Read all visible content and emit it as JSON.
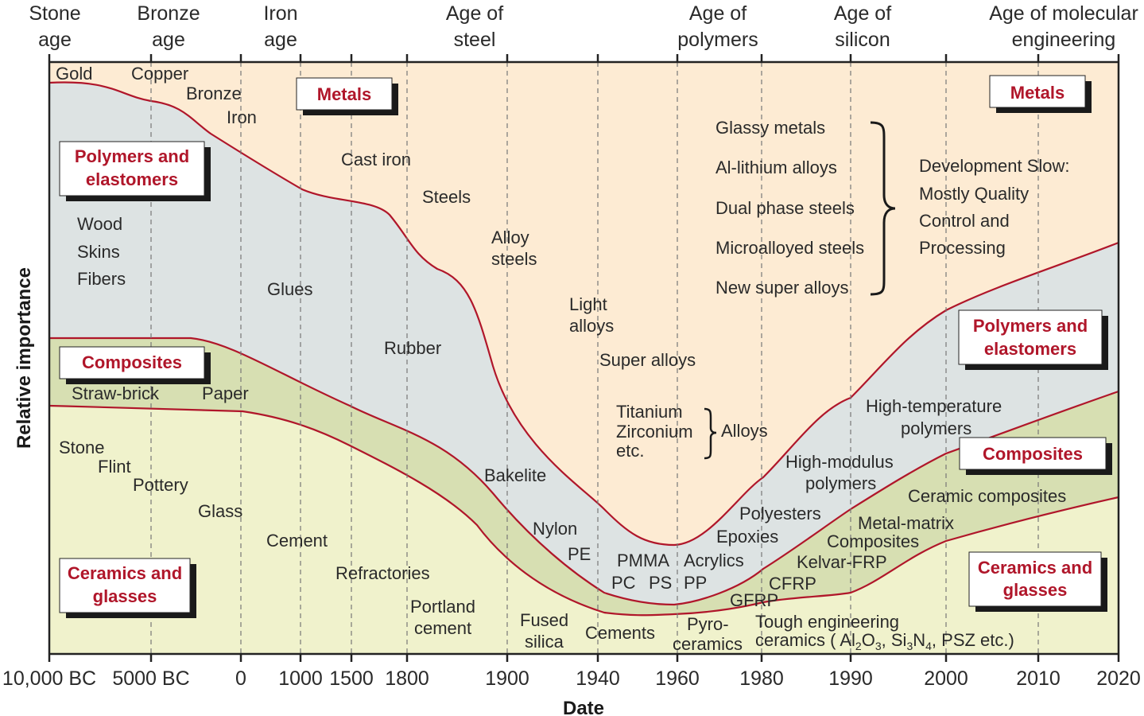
{
  "colors": {
    "metals": "#fdebd3",
    "polymers": "#dde3e3",
    "composites": "#d7dfb2",
    "ceramics": "#f0f2cc",
    "boundary": "#b0162a",
    "box_text": "#b0162a"
  },
  "eras": [
    {
      "line1": "Stone",
      "line2": "age"
    },
    {
      "line1": "Bronze",
      "line2": "age"
    },
    {
      "line1": "Iron",
      "line2": "age"
    },
    {
      "line1": "Age of",
      "line2": "steel"
    },
    {
      "line1": "Age of",
      "line2": "polymers"
    },
    {
      "line1": "Age of",
      "line2": "silicon"
    },
    {
      "line1": "Age of molecular",
      "line2": "engineering"
    }
  ],
  "x_ticks": [
    "10,000 BC",
    "5000 BC",
    "0",
    "1000",
    "1500",
    "1800",
    "1900",
    "1940",
    "1960",
    "1980",
    "1990",
    "2000",
    "2010",
    "2020"
  ],
  "axes": {
    "xlabel": "Date",
    "ylabel": "Relative importance"
  },
  "boxes": {
    "metals_left": "Metals",
    "metals_right": "Metals",
    "polymers_left": [
      "Polymers and",
      "elastomers"
    ],
    "polymers_right": [
      "Polymers and",
      "elastomers"
    ],
    "composites_left": "Composites",
    "composites_right": "Composites",
    "ceramics_left": [
      "Ceramics and",
      "glasses"
    ],
    "ceramics_right": [
      "Ceramics and",
      "glasses"
    ]
  },
  "labels": {
    "gold": "Gold",
    "copper": "Copper",
    "bronze": "Bronze",
    "iron": "Iron",
    "cast_iron": "Cast iron",
    "steels": "Steels",
    "alloy": "Alloy",
    "steels2": "steels",
    "light": "Light",
    "alloys": "alloys",
    "super_alloys": "Super alloys",
    "titanium": "Titanium",
    "zirconium": "Zirconium",
    "etc": "etc.",
    "alloys_brace": "Alloys",
    "glassy_metals": "Glassy metals",
    "al_lithium": "Al-lithium alloys",
    "dual_phase": "Dual phase steels",
    "microalloyed": "Microalloyed steels",
    "new_super": "New super alloys",
    "dev1": "Development Slow:",
    "dev2": "Mostly Quality",
    "dev3": "Control and",
    "dev4": "Processing",
    "wood": "Wood",
    "skins": "Skins",
    "fibers": "Fibers",
    "glues": "Glues",
    "rubber": "Rubber",
    "bakelite": "Bakelite",
    "nylon": "Nylon",
    "pe": "PE",
    "pmma": "PMMA",
    "acrylics": "Acrylics",
    "pc": "PC",
    "ps": "PS",
    "pp": "PP",
    "polyesters": "Polyesters",
    "epoxies": "Epoxies",
    "high_mod1": "High-modulus",
    "high_mod2": "polymers",
    "high_temp1": "High-temperature",
    "high_temp2": "polymers",
    "straw_brick": "Straw-brick",
    "paper": "Paper",
    "gfrp": "GFRP",
    "cfrp": "CFRP",
    "kelvar": "Kelvar-FRP",
    "metal_matrix1": "Metal-matrix",
    "metal_matrix2": "Composites",
    "ceramic_comp": "Ceramic composites",
    "stone": "Stone",
    "flint": "Flint",
    "pottery": "Pottery",
    "glass": "Glass",
    "cement": "Cement",
    "refractories": "Refractories",
    "portland1": "Portland",
    "portland2": "cement",
    "fused1": "Fused",
    "fused2": "silica",
    "cements": "Cements",
    "pyro1": "Pyro-",
    "pyro2": "ceramics",
    "tough1": "Tough engineering",
    "tough2a": "ceramics ( Al",
    "sub2": "2",
    "tough2b": "O",
    "sub3": "3",
    "tough2c": ", Si",
    "sub3b": "3",
    "tough2d": "N",
    "sub4": "4",
    "tough2e": ", PSZ etc.)"
  }
}
